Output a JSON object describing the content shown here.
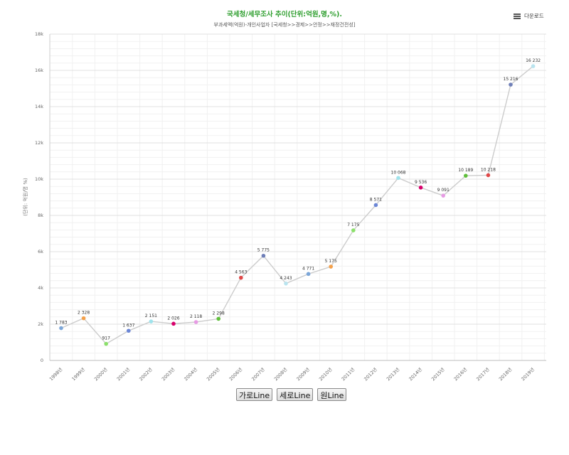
{
  "download": {
    "label": "다운로드",
    "icon": "menu-icon"
  },
  "buttons": [
    "가로Line",
    "세로Line",
    "원Line"
  ],
  "chart_data": {
    "type": "line",
    "title": "국세청/세무조사 추이(단위:억원,명,%).",
    "subtitle": "부과세액(억원)-개인사업자 [국세청>>경제>>안정>>재정건전성]",
    "ylabel": "(단위: 억원/명 %)",
    "xlabel": "",
    "ylim": [
      0,
      18000
    ],
    "yticks": [
      0,
      2000,
      4000,
      6000,
      8000,
      10000,
      12000,
      14000,
      16000,
      18000
    ],
    "ytick_labels": [
      "0",
      "2k",
      "4k",
      "6k",
      "8k",
      "10k",
      "12k",
      "14k",
      "16k",
      "18k"
    ],
    "grid": true,
    "categories": [
      "1998년",
      "1999년",
      "2000년",
      "2001년",
      "2002년",
      "2003년",
      "2004년",
      "2005년",
      "2006년",
      "2007년",
      "2008년",
      "2009년",
      "2010년",
      "2011년",
      "2012년",
      "2013년",
      "2014년",
      "2015년",
      "2016년",
      "2017년",
      "2018년",
      "2019년"
    ],
    "values": [
      1783,
      2328,
      917,
      1637,
      2151,
      2026,
      2118,
      2298,
      4563,
      5775,
      4243,
      4771,
      5175,
      7175,
      8571,
      10068,
      9536,
      9091,
      10189,
      10218,
      15216,
      16232
    ],
    "value_labels": [
      "1 783",
      "2 328",
      "917",
      "1 637",
      "2 151",
      "2 026",
      "2 118",
      "2 298",
      "4 563",
      "5 775",
      "4 243",
      "4 771",
      "5 175",
      "7 175",
      "8 571",
      "10 068",
      "9 536",
      "9 091",
      "10 189",
      "10 218",
      "15 216",
      "16 232"
    ],
    "point_colors": [
      "#7ca6d8",
      "#f4a04a",
      "#8be06a",
      "#6b86d6",
      "#9fe3ec",
      "#d8006b",
      "#e79be4",
      "#5fbf3a",
      "#e04848",
      "#6f7fb8",
      "#b9e4ef",
      "#7ca6d8",
      "#f4a04a",
      "#8be06a",
      "#6b86d6",
      "#9fe3ec",
      "#d8006b",
      "#e79be4",
      "#5fbf3a",
      "#e04848",
      "#6f7fb8",
      "#b9e4ef"
    ],
    "line_color": "#cccccc"
  }
}
